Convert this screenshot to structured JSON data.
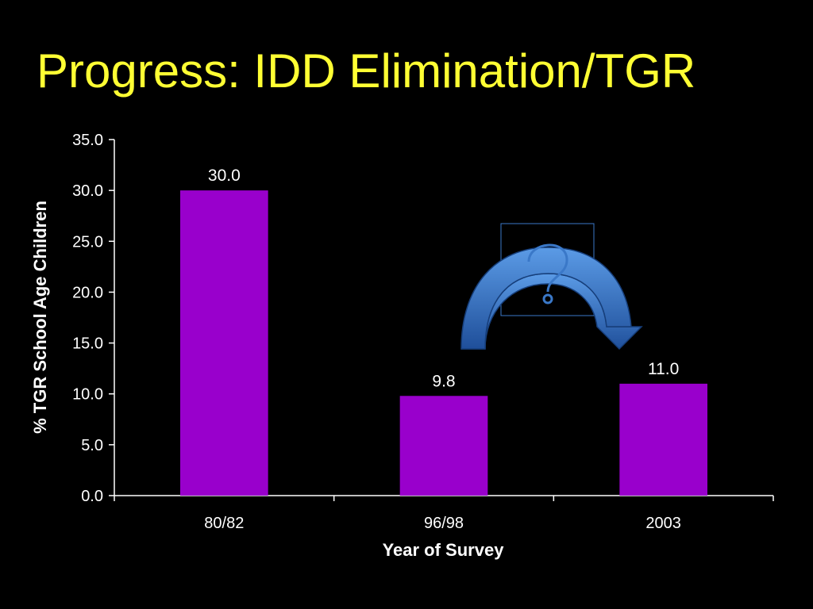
{
  "slide": {
    "title": "Progress: IDD Elimination/TGR",
    "title_color": "#ffff33",
    "background": "#000000"
  },
  "chart_data": {
    "type": "bar",
    "categories": [
      "80/82",
      "96/98",
      "2003"
    ],
    "values": [
      30.0,
      9.8,
      11.0
    ],
    "data_labels": [
      "30.0",
      "9.8",
      "11.0"
    ],
    "xlabel": "Year of Survey",
    "ylabel": "% TGR School Age Children",
    "ylim": [
      0,
      35
    ],
    "yticks": [
      "0.0",
      "5.0",
      "10.0",
      "15.0",
      "20.0",
      "25.0",
      "30.0",
      "35.0"
    ],
    "bar_color": "#9900cc",
    "grid": false,
    "legend": "none",
    "annotation": {
      "type": "curved-arrow",
      "from_category": "96/98",
      "to_category": "2003",
      "color": "#3a78c8",
      "icon": "question-mark-icon"
    }
  }
}
